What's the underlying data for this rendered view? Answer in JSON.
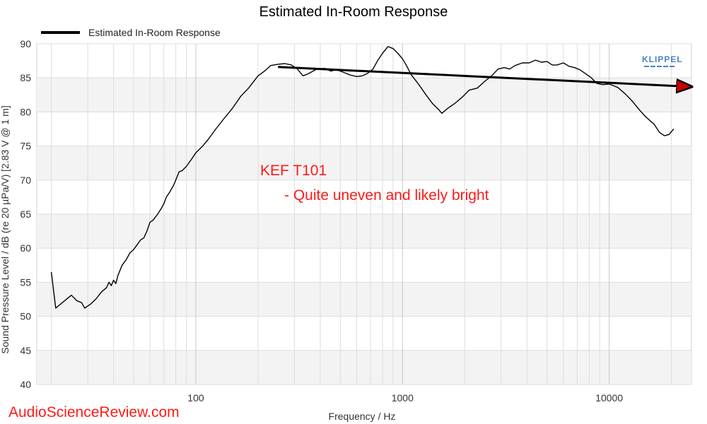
{
  "chart_data": {
    "type": "line",
    "title": "Estimated In-Room Response",
    "xlabel": "Frequency / Hz",
    "ylabel": "Sound Pressure Level / dB (re 20 µPa/V)  [2.83  V @ 1  m]",
    "x_scale": "log",
    "xlim": [
      17,
      25000
    ],
    "ylim": [
      40,
      90
    ],
    "x_ticks": [
      {
        "value": 100,
        "label": "100"
      },
      {
        "value": 1000,
        "label": "1000"
      },
      {
        "value": 10000,
        "label": "10000"
      }
    ],
    "y_ticks": [
      {
        "value": 40,
        "label": "40"
      },
      {
        "value": 45,
        "label": "45"
      },
      {
        "value": 50,
        "label": "50"
      },
      {
        "value": 55,
        "label": "55"
      },
      {
        "value": 60,
        "label": "60"
      },
      {
        "value": 65,
        "label": "65"
      },
      {
        "value": 70,
        "label": "70"
      },
      {
        "value": 75,
        "label": "75"
      },
      {
        "value": 80,
        "label": "80"
      },
      {
        "value": 85,
        "label": "85"
      },
      {
        "value": 90,
        "label": "90"
      }
    ],
    "grid": true,
    "legend": {
      "position": "top-left",
      "entries": [
        "Estimated In-Room Response"
      ]
    },
    "series": [
      {
        "name": "Estimated In-Room Response",
        "color": "#000000",
        "points": [
          [
            20,
            56.5
          ],
          [
            21,
            51.2
          ],
          [
            23,
            52.2
          ],
          [
            25,
            53.1
          ],
          [
            26.5,
            52.3
          ],
          [
            28,
            52.0
          ],
          [
            29,
            51.2
          ],
          [
            31,
            51.8
          ],
          [
            33,
            52.6
          ],
          [
            35,
            53.6
          ],
          [
            37,
            54.2
          ],
          [
            38,
            55.0
          ],
          [
            39,
            54.5
          ],
          [
            40,
            55.3
          ],
          [
            41,
            54.8
          ],
          [
            42,
            56.0
          ],
          [
            44,
            57.5
          ],
          [
            46,
            58.3
          ],
          [
            48,
            59.3
          ],
          [
            50,
            59.8
          ],
          [
            52,
            60.5
          ],
          [
            54,
            61.2
          ],
          [
            56,
            61.5
          ],
          [
            58,
            62.5
          ],
          [
            60,
            63.8
          ],
          [
            62,
            64.1
          ],
          [
            65,
            64.9
          ],
          [
            68,
            65.8
          ],
          [
            70,
            66.5
          ],
          [
            72,
            67.5
          ],
          [
            75,
            68.3
          ],
          [
            78,
            69.2
          ],
          [
            80,
            70.0
          ],
          [
            83,
            71.2
          ],
          [
            86,
            71.4
          ],
          [
            90,
            72.0
          ],
          [
            95,
            73.0
          ],
          [
            100,
            74.0
          ],
          [
            108,
            75.0
          ],
          [
            115,
            76.0
          ],
          [
            125,
            77.5
          ],
          [
            135,
            78.8
          ],
          [
            150,
            80.5
          ],
          [
            165,
            82.3
          ],
          [
            180,
            83.5
          ],
          [
            200,
            85.3
          ],
          [
            215,
            86.0
          ],
          [
            230,
            86.8
          ],
          [
            250,
            87.0
          ],
          [
            270,
            87.1
          ],
          [
            290,
            86.9
          ],
          [
            310,
            86.3
          ],
          [
            330,
            85.3
          ],
          [
            350,
            85.6
          ],
          [
            380,
            86.2
          ],
          [
            420,
            86.4
          ],
          [
            450,
            86.0
          ],
          [
            480,
            86.2
          ],
          [
            520,
            85.8
          ],
          [
            560,
            85.4
          ],
          [
            600,
            85.2
          ],
          [
            640,
            85.3
          ],
          [
            680,
            85.7
          ],
          [
            720,
            86.3
          ],
          [
            760,
            87.6
          ],
          [
            800,
            88.6
          ],
          [
            850,
            89.6
          ],
          [
            900,
            89.3
          ],
          [
            950,
            88.6
          ],
          [
            1000,
            87.8
          ],
          [
            1050,
            86.7
          ],
          [
            1100,
            85.5
          ],
          [
            1200,
            84.0
          ],
          [
            1300,
            82.5
          ],
          [
            1400,
            81.2
          ],
          [
            1500,
            80.3
          ],
          [
            1550,
            79.8
          ],
          [
            1650,
            80.5
          ],
          [
            1800,
            81.3
          ],
          [
            1950,
            82.2
          ],
          [
            2100,
            83.2
          ],
          [
            2300,
            83.5
          ],
          [
            2500,
            84.5
          ],
          [
            2700,
            85.3
          ],
          [
            2900,
            86.3
          ],
          [
            3100,
            86.5
          ],
          [
            3300,
            86.3
          ],
          [
            3500,
            86.8
          ],
          [
            3800,
            87.2
          ],
          [
            4100,
            87.2
          ],
          [
            4400,
            87.6
          ],
          [
            4700,
            87.3
          ],
          [
            5000,
            87.4
          ],
          [
            5300,
            86.9
          ],
          [
            5600,
            86.9
          ],
          [
            6000,
            87.2
          ],
          [
            6400,
            86.7
          ],
          [
            6800,
            86.5
          ],
          [
            7200,
            86.2
          ],
          [
            7700,
            85.6
          ],
          [
            8200,
            85.0
          ],
          [
            8700,
            84.2
          ],
          [
            9300,
            84.0
          ],
          [
            10000,
            84.1
          ],
          [
            11000,
            83.6
          ],
          [
            12000,
            82.6
          ],
          [
            13000,
            81.5
          ],
          [
            14000,
            80.3
          ],
          [
            15000,
            79.3
          ],
          [
            16500,
            78.2
          ],
          [
            17500,
            77.0
          ],
          [
            18500,
            76.5
          ],
          [
            19500,
            76.7
          ],
          [
            20500,
            77.5
          ]
        ]
      },
      {
        "name": "",
        "color": "#000000",
        "arrow": true,
        "points": [
          [
            250,
            86.6
          ],
          [
            25000,
            83.7
          ]
        ]
      }
    ],
    "annotations": [
      {
        "title": "KEF T101",
        "text": "- Quite uneven and likely bright"
      }
    ]
  },
  "branding": {
    "logo_text": "KLIPPEL",
    "logo_color": "#4a82c4",
    "watermark": "AudioScienceReview.com",
    "watermark_color": "#ff1a1a"
  },
  "colors": {
    "band": "#f3f3f3",
    "grid": "#dddddd",
    "annotation": "#ff1a1a"
  }
}
